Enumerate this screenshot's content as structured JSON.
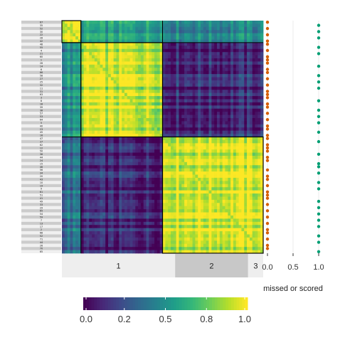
{
  "chart_data": [
    {
      "type": "heatmap",
      "row_labels": [
        "67",
        "35",
        "52",
        "30",
        "22",
        "28",
        "42",
        "48",
        "55",
        "4",
        "21",
        "60",
        "1",
        "26",
        "14",
        "6",
        "66",
        "58",
        "27",
        "25",
        "32",
        "11",
        "31",
        "63",
        "3",
        "8",
        "18",
        "39",
        "38",
        "57",
        "53",
        "64",
        "5",
        "40",
        "23",
        "45",
        "16",
        "47",
        "37",
        "62",
        "12",
        "50",
        "36",
        "44",
        "24",
        "15",
        "46",
        "56",
        "34",
        "20",
        "43",
        "10",
        "19",
        "9",
        "61",
        "51",
        "41",
        "49",
        "33",
        "29",
        "65",
        "54",
        "59",
        "7",
        "13",
        "17",
        "2",
        "68",
        "52",
        "71",
        "44",
        "26",
        "70",
        "65"
      ],
      "n": 74,
      "clusters": [
        {
          "label": "1",
          "size": 7
        },
        {
          "label": "2",
          "size": 30
        },
        {
          "label": "3",
          "size": 37
        }
      ],
      "column_groups": [
        {
          "label": "1",
          "size": 45
        },
        {
          "label": "2",
          "size": 29
        },
        {
          "label": "3",
          "size": 6
        }
      ],
      "block_levels": [
        [
          0.95,
          0.55,
          0.45
        ],
        [
          0.5,
          0.92,
          0.12
        ],
        [
          0.35,
          0.1,
          0.95
        ]
      ],
      "colorbar": {
        "range": [
          0.0,
          1.0
        ],
        "ticks": [
          "0.0",
          "0.2",
          "0.5",
          "0.8",
          "1.0"
        ],
        "tick_values": [
          0.0,
          0.25,
          0.5,
          0.75,
          1.0
        ]
      }
    },
    {
      "type": "scatter",
      "xlabel": "missed or scored",
      "ticks": [
        "0.0",
        "0.5",
        "1.0"
      ],
      "tick_values": [
        0.0,
        0.5,
        1.0
      ],
      "xlim": [
        0.0,
        1.0
      ],
      "values": [
        0,
        1,
        0,
        1,
        0,
        1,
        0,
        0,
        1,
        0,
        1,
        0,
        0,
        0,
        1,
        0,
        0,
        1,
        0,
        1,
        0,
        1,
        0,
        0,
        0,
        1,
        0,
        0,
        1,
        0,
        1,
        0,
        1,
        0,
        0,
        1,
        0,
        0,
        1,
        0,
        0,
        0,
        1,
        0,
        0,
        1,
        1,
        0,
        1,
        0,
        0,
        1,
        0,
        1,
        0,
        0,
        0,
        1,
        0,
        1,
        0,
        1,
        0,
        1,
        0,
        1,
        0,
        0,
        1,
        0,
        1,
        0,
        0,
        1
      ],
      "colors": {
        "missed": "#d55e00",
        "scored": "#009e73"
      }
    }
  ],
  "colors": {
    "viridis": [
      "#440154",
      "#482878",
      "#3e4a89",
      "#31688e",
      "#26828e",
      "#1f9e89",
      "#35b779",
      "#6ece58",
      "#b5de2b",
      "#fde725"
    ],
    "strip_grey": "#cccccc",
    "strip_light": "#f0f0f0",
    "group_dark": "#c8c8c8",
    "group_light": "#eeeeee",
    "missed": "#d55e00",
    "scored": "#009e73"
  }
}
